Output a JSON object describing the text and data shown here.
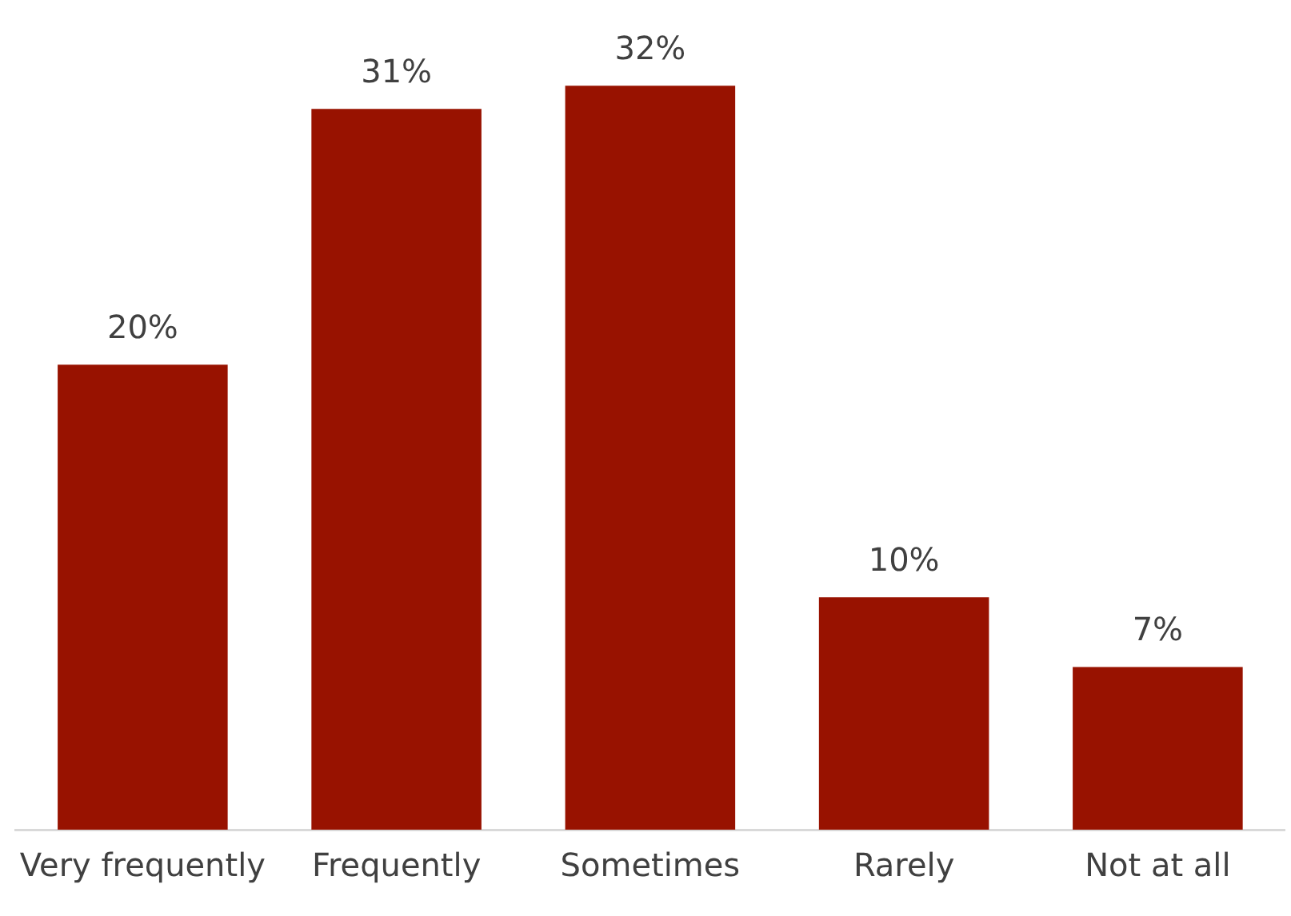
{
  "chart_data": {
    "type": "bar",
    "categories": [
      "Very frequently",
      "Frequently",
      "Sometimes",
      "Rarely",
      "Not at all"
    ],
    "values": [
      20,
      31,
      32,
      10,
      7
    ],
    "value_labels": [
      "20%",
      "31%",
      "32%",
      "10%",
      "7%"
    ],
    "color": "#981200",
    "grid": false,
    "legend": false
  }
}
